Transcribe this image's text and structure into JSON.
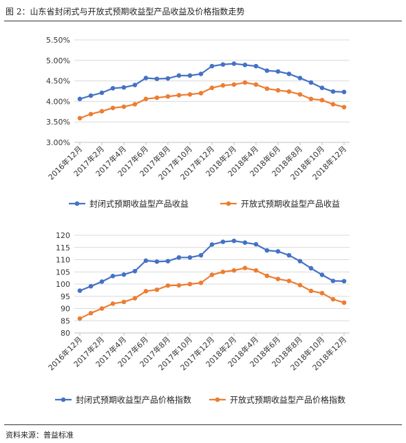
{
  "figure_title": "图 2：山东省封闭式与开放式预期收益型产品收益及价格指数走势",
  "source": "资料来源：普益标准",
  "colors": {
    "closed": "#4472c4",
    "open": "#ed7d31",
    "grid": "#d9d9d9",
    "axis": "#bfbfbf"
  },
  "chart_data": [
    {
      "type": "line",
      "categories": [
        "2016年12月",
        "2017年1月",
        "2017年2月",
        "2017年3月",
        "2017年4月",
        "2017年5月",
        "2017年6月",
        "2017年7月",
        "2017年8月",
        "2017年9月",
        "2017年10月",
        "2017年11月",
        "2017年12月",
        "2018年1月",
        "2018年2月",
        "2018年3月",
        "2018年4月",
        "2018年5月",
        "2018年6月",
        "2018年7月",
        "2018年8月",
        "2018年9月",
        "2018年10月",
        "2018年11月",
        "2018年12月"
      ],
      "tick_labels": [
        "2016年12月",
        "2017年2月",
        "2017年4月",
        "2017年6月",
        "2017年8月",
        "2017年10月",
        "2017年12月",
        "2018年2月",
        "2018年4月",
        "2018年6月",
        "2018年8月",
        "2018年10月",
        "2018年12月"
      ],
      "y_tick_labels": [
        "3.00%",
        "3.50%",
        "4.00%",
        "4.50%",
        "5.00%",
        "5.50%"
      ],
      "ylim": [
        3.0,
        5.5
      ],
      "ystep": 0.5,
      "y_unit": "%",
      "series": [
        {
          "name": "封闭式预期收益型产品收益",
          "color": "#4472c4",
          "values": [
            4.06,
            4.14,
            4.21,
            4.32,
            4.34,
            4.4,
            4.57,
            4.55,
            4.56,
            4.63,
            4.63,
            4.67,
            4.86,
            4.9,
            4.92,
            4.89,
            4.86,
            4.75,
            4.73,
            4.67,
            4.57,
            4.46,
            4.33,
            4.24,
            4.23
          ]
        },
        {
          "name": "开放式预期收益型产品收益",
          "color": "#ed7d31",
          "values": [
            3.59,
            3.69,
            3.76,
            3.84,
            3.87,
            3.93,
            4.06,
            4.09,
            4.12,
            4.15,
            4.17,
            4.2,
            4.33,
            4.39,
            4.41,
            4.46,
            4.41,
            4.31,
            4.27,
            4.24,
            4.17,
            4.06,
            4.03,
            3.93,
            3.86
          ]
        }
      ]
    },
    {
      "type": "line",
      "categories": [
        "2016年12月",
        "2017年1月",
        "2017年2月",
        "2017年3月",
        "2017年4月",
        "2017年5月",
        "2017年6月",
        "2017年7月",
        "2017年8月",
        "2017年9月",
        "2017年10月",
        "2017年11月",
        "2017年12月",
        "2018年1月",
        "2018年2月",
        "2018年3月",
        "2018年4月",
        "2018年5月",
        "2018年6月",
        "2018年7月",
        "2018年8月",
        "2018年9月",
        "2018年10月",
        "2018年11月",
        "2018年12月"
      ],
      "tick_labels": [
        "2016年12月",
        "2017年2月",
        "2017年4月",
        "2017年6月",
        "2017年8月",
        "2017年10月",
        "2017年12月",
        "2018年2月",
        "2018年4月",
        "2018年6月",
        "2018年8月",
        "2018年10月",
        "2018年12月"
      ],
      "y_tick_labels": [
        "80",
        "85",
        "90",
        "95",
        "100",
        "105",
        "110",
        "115",
        "120"
      ],
      "ylim": [
        80,
        120
      ],
      "ystep": 5,
      "y_unit": "",
      "series": [
        {
          "name": "封闭式预期收益型产品价格指数",
          "color": "#4472c4",
          "values": [
            97.3,
            99.1,
            101.0,
            103.3,
            103.9,
            105.3,
            109.6,
            109.2,
            109.4,
            110.9,
            110.9,
            111.8,
            116.2,
            117.3,
            117.7,
            117.0,
            116.3,
            113.8,
            113.4,
            111.8,
            109.4,
            106.5,
            103.8,
            101.3,
            101.2
          ]
        },
        {
          "name": "开放式预期收益型产品价格指数",
          "color": "#ed7d31",
          "values": [
            85.9,
            88.1,
            90.0,
            92.0,
            92.7,
            94.2,
            97.1,
            97.7,
            99.4,
            99.5,
            100.0,
            100.5,
            103.8,
            105.0,
            105.6,
            106.6,
            105.6,
            103.4,
            102.1,
            101.3,
            99.6,
            97.2,
            96.3,
            93.8,
            92.4
          ]
        }
      ]
    }
  ]
}
